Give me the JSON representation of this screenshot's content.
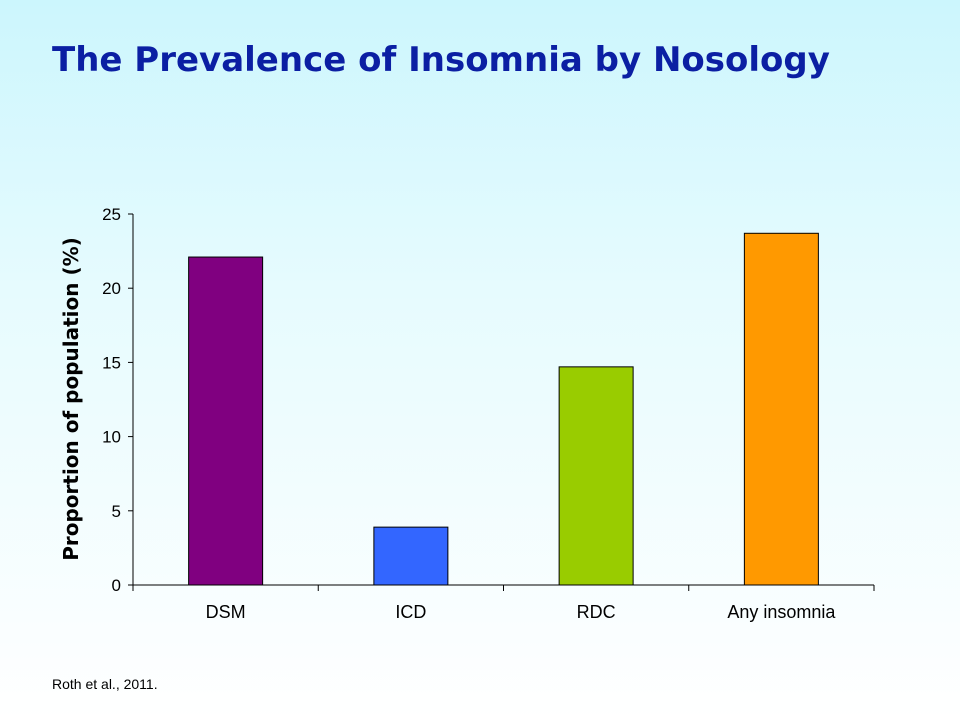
{
  "slide": {
    "title": "The Prevalence of Insomnia by Nosology",
    "citation": "Roth  et al.,  2011."
  },
  "colors": {
    "title": "#0b1fa3",
    "dsm_bar": "#800080",
    "icd_bar": "#3366ff",
    "rdc_bar": "#99cc00",
    "any_bar": "#ff9900"
  },
  "chart_data": {
    "type": "bar",
    "title": "",
    "xlabel": "",
    "ylabel": "Proportion of population (%)",
    "ylim": [
      0,
      25
    ],
    "yticks": [
      0,
      5,
      10,
      15,
      20,
      25
    ],
    "grid": false,
    "legend": "none",
    "categories": [
      "DSM",
      "ICD",
      "RDC",
      "Any insomnia"
    ],
    "values": [
      22.1,
      3.9,
      14.7,
      23.7
    ],
    "bar_colors": [
      "#800080",
      "#3366ff",
      "#99cc00",
      "#ff9900"
    ]
  }
}
